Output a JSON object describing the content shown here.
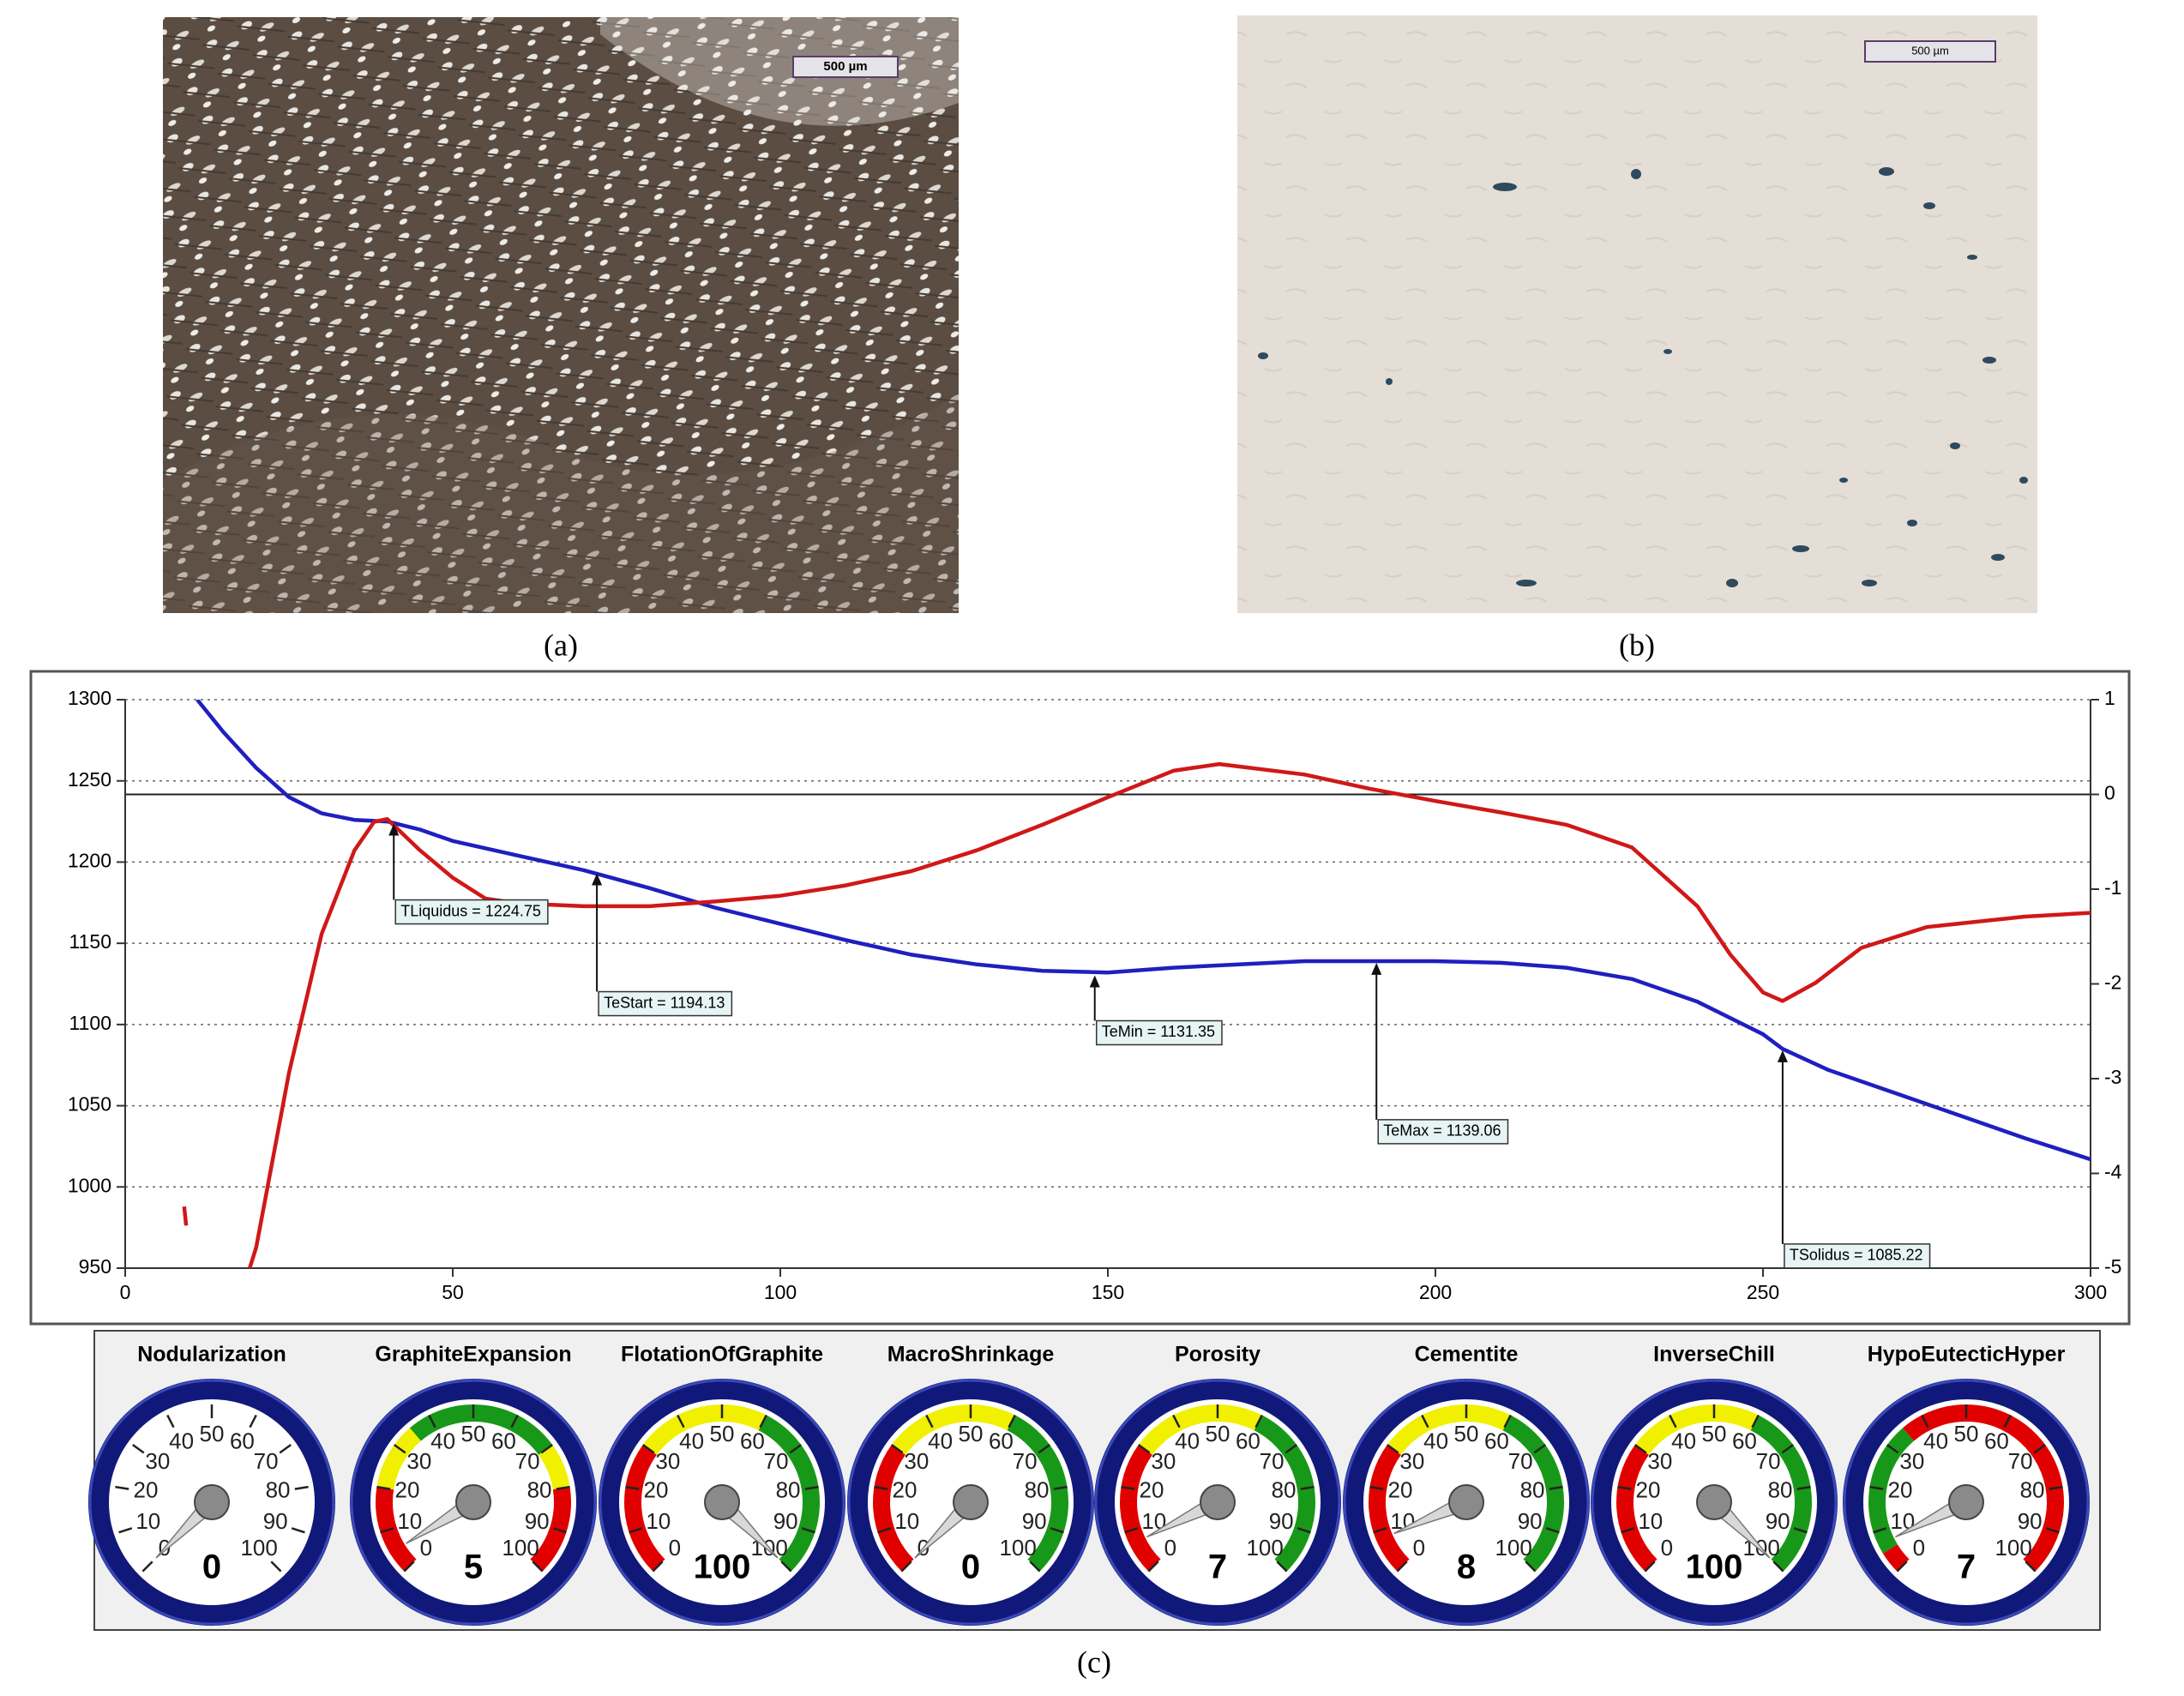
{
  "panels": [
    "(a)",
    "(b)",
    "(c)"
  ],
  "scale_bars": [
    "500 µm",
    "500 µm"
  ],
  "chart_data": [
    {
      "type": "line",
      "xlim": [
        0,
        300
      ],
      "xticks": [
        0,
        50,
        100,
        150,
        200,
        250,
        300
      ],
      "ylim": [
        950,
        1300
      ],
      "yticks": [
        950,
        1000,
        1050,
        1100,
        1150,
        1200,
        1250,
        1300
      ],
      "y2lim": [
        -5,
        1
      ],
      "y2ticks": [
        -5,
        -4,
        -3,
        -2,
        -1,
        0,
        1
      ],
      "y2_reference_line": 0,
      "grid": true,
      "series": [
        {
          "color": "#1f1fbf",
          "x": [
            11,
            15,
            20,
            25,
            30,
            35,
            40,
            45,
            50,
            60,
            70,
            80,
            90,
            100,
            110,
            120,
            130,
            140,
            150,
            160,
            170,
            180,
            190,
            200,
            210,
            220,
            230,
            240,
            250,
            253,
            260,
            270,
            280,
            290,
            300
          ],
          "values": [
            1300,
            1280,
            1258,
            1240,
            1230,
            1226,
            1225,
            1220,
            1213,
            1204,
            1195,
            1184,
            1172,
            1162,
            1152,
            1143,
            1137,
            1133,
            1132,
            1135,
            1137,
            1139,
            1139,
            1139,
            1138,
            1135,
            1128,
            1114,
            1094,
            1085,
            1072,
            1058,
            1044,
            1030,
            1017
          ]
        },
        {
          "color": "#d01818",
          "axis": "y2",
          "x": [
            9,
            9.3,
            15,
            19,
            20,
            25,
            30,
            35,
            38,
            40,
            45,
            50,
            55,
            60,
            70,
            80,
            90,
            100,
            110,
            120,
            130,
            140,
            150,
            160,
            167,
            180,
            190,
            200,
            210,
            220,
            230,
            240,
            245,
            250,
            253,
            258,
            265,
            275,
            290,
            300
          ],
          "values": [
            -4.35,
            -4.55,
            null,
            -5,
            -4.78,
            -2.94,
            -1.47,
            -0.59,
            -0.29,
            -0.26,
            -0.59,
            -0.88,
            -1.1,
            -1.15,
            -1.18,
            -1.18,
            -1.13,
            -1.07,
            -0.96,
            -0.81,
            -0.59,
            -0.32,
            -0.03,
            0.25,
            0.32,
            0.21,
            0.06,
            -0.07,
            -0.19,
            -0.32,
            -0.56,
            -1.18,
            -1.69,
            -2.09,
            -2.18,
            -1.99,
            -1.62,
            -1.4,
            -1.29,
            -1.25
          ]
        }
      ],
      "annotations": [
        {
          "label": "TLiquidus = 1224.75",
          "x": 41,
          "y": 1224.75
        },
        {
          "label": "TeStart = 1194.13",
          "x": 72,
          "y": 1194.13
        },
        {
          "label": "TeMin = 1131.35",
          "x": 148,
          "y": 1131.35
        },
        {
          "label": "TeMax = 1139.06",
          "x": 191,
          "y": 1139.06
        },
        {
          "label": "TSolidus = 1085.22",
          "x": 253,
          "y": 1085.22
        }
      ]
    },
    {
      "type": "gauge",
      "ticks": [
        0,
        10,
        20,
        30,
        40,
        50,
        60,
        70,
        80,
        90,
        100
      ],
      "gauges": [
        {
          "name": "Nodularization",
          "value": 0,
          "bands": []
        },
        {
          "name": "GraphiteExpansion",
          "value": 5,
          "bands": [
            {
              "from": 0,
              "to": 20,
              "color": "#e00000"
            },
            {
              "from": 20,
              "to": 35,
              "color": "#f0f000"
            },
            {
              "from": 35,
              "to": 70,
              "color": "#189818"
            },
            {
              "from": 70,
              "to": 80,
              "color": "#f0f000"
            },
            {
              "from": 80,
              "to": 100,
              "color": "#e00000"
            }
          ]
        },
        {
          "name": "FlotationOfGraphite",
          "value": 100,
          "bands": [
            {
              "from": 0,
              "to": 30,
              "color": "#e00000"
            },
            {
              "from": 30,
              "to": 60,
              "color": "#f0f000"
            },
            {
              "from": 60,
              "to": 100,
              "color": "#189818"
            }
          ]
        },
        {
          "name": "MacroShrinkage",
          "value": 0,
          "bands": [
            {
              "from": 0,
              "to": 30,
              "color": "#e00000"
            },
            {
              "from": 30,
              "to": 60,
              "color": "#f0f000"
            },
            {
              "from": 60,
              "to": 100,
              "color": "#189818"
            }
          ]
        },
        {
          "name": "Porosity",
          "value": 7,
          "bands": [
            {
              "from": 0,
              "to": 30,
              "color": "#e00000"
            },
            {
              "from": 30,
              "to": 60,
              "color": "#f0f000"
            },
            {
              "from": 60,
              "to": 100,
              "color": "#189818"
            }
          ]
        },
        {
          "name": "Cementite",
          "value": 8,
          "bands": [
            {
              "from": 0,
              "to": 30,
              "color": "#e00000"
            },
            {
              "from": 30,
              "to": 60,
              "color": "#f0f000"
            },
            {
              "from": 60,
              "to": 100,
              "color": "#189818"
            }
          ]
        },
        {
          "name": "InverseChill",
          "value": 100,
          "bands": [
            {
              "from": 0,
              "to": 30,
              "color": "#e00000"
            },
            {
              "from": 30,
              "to": 60,
              "color": "#f0f000"
            },
            {
              "from": 60,
              "to": 100,
              "color": "#189818"
            }
          ]
        },
        {
          "name": "HypoEutecticHyper",
          "value": 7,
          "bands": [
            {
              "from": 0,
              "to": 5,
              "color": "#e00000"
            },
            {
              "from": 5,
              "to": 35,
              "color": "#189818"
            },
            {
              "from": 35,
              "to": 100,
              "color": "#e00000"
            }
          ]
        }
      ]
    }
  ]
}
